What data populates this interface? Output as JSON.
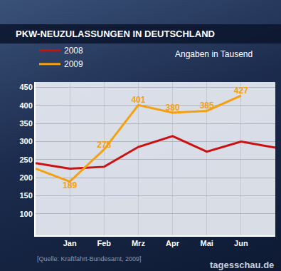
{
  "chart_data": {
    "type": "line",
    "title": "PKW-NEUZULASSUNGEN IN DEUTSCHLAND",
    "subtitle": "Angaben in Tausend",
    "annotations": [
      "[Quelle: Kraftfahrt-Bundesamt, 2009]",
      "tagesschau.de"
    ],
    "categories": [
      null,
      "Jan",
      "Feb",
      "Mrz",
      "Apr",
      "Mai",
      "Jun",
      null
    ],
    "series": [
      {
        "name": "2008",
        "color": "#cc1111",
        "values": [
          240,
          225,
          230,
          285,
          315,
          272,
          300,
          283
        ]
      },
      {
        "name": "2009",
        "color": "#f5a011",
        "values": [
          225,
          189,
          278,
          401,
          380,
          385,
          427,
          null
        ],
        "data_labels": true,
        "value_labels": [
          null,
          "189",
          "278",
          "401",
          "380",
          "385",
          "427",
          null
        ]
      }
    ],
    "ylim": [
      40,
      465
    ],
    "yticks": [
      100,
      150,
      200,
      250,
      300,
      350,
      400,
      450
    ],
    "grid": true,
    "legend": "top-left"
  }
}
